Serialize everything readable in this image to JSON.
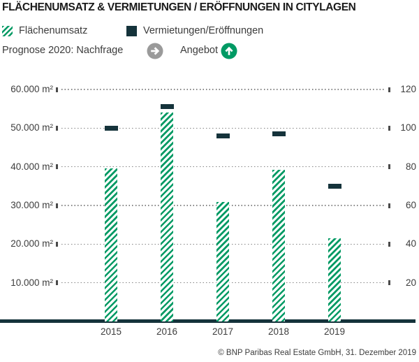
{
  "header": {
    "title": "FLÄCHENUMSATZ & VERMIETUNGEN / ERÖFFNUNGEN IN CITYLAGEN"
  },
  "legend": {
    "flaechenumsatz_label": "Flächenumsatz",
    "vermietungen_label": "Vermietungen/Eröffnungen"
  },
  "prognose": {
    "label": "Prognose 2020: Nachfrage",
    "nachfrage_icon": "arrow-right-circle-icon",
    "nachfrage_icon_color": "#9a9a9a",
    "angebot_label": "Angebot",
    "angebot_icon": "arrow-up-circle-icon",
    "angebot_icon_color": "#009a64"
  },
  "chart_data": {
    "type": "bar",
    "title": "FLÄCHENUMSATZ & VERMIETUNGEN / ERÖFFNUNGEN IN CITYLAGEN",
    "categories": [
      "2015",
      "2016",
      "2017",
      "2018",
      "2019"
    ],
    "series": [
      {
        "name": "Flächenumsatz",
        "style": "hatched-bar",
        "axis": "left",
        "unit": "m²",
        "values": [
          39500,
          54000,
          30900,
          39200,
          21500
        ]
      },
      {
        "name": "Vermietungen/Eröffnungen",
        "style": "dash-marker",
        "axis": "right",
        "unit": "count",
        "values": [
          100,
          111,
          96,
          97,
          70
        ]
      }
    ],
    "left_axis": {
      "ticks": [
        "60.000 m²",
        "50.000 m²",
        "40.000 m²",
        "30.000 m²",
        "20.000 m²",
        "10.000 m²"
      ],
      "values": [
        60000,
        50000,
        40000,
        30000,
        20000,
        10000
      ],
      "min": 0,
      "max": 65000
    },
    "right_axis": {
      "ticks": [
        "120",
        "100",
        "80",
        "60",
        "40",
        "20"
      ],
      "values": [
        120,
        100,
        80,
        60,
        40,
        20
      ],
      "min": 0,
      "max": 130
    },
    "grid": true,
    "legend_position": "top",
    "bar_color": "#009a64",
    "dash_color": "#15333b"
  },
  "footer": {
    "copyright": "© BNP Paribas Real Estate GmbH, 31. Dezember 2019"
  }
}
